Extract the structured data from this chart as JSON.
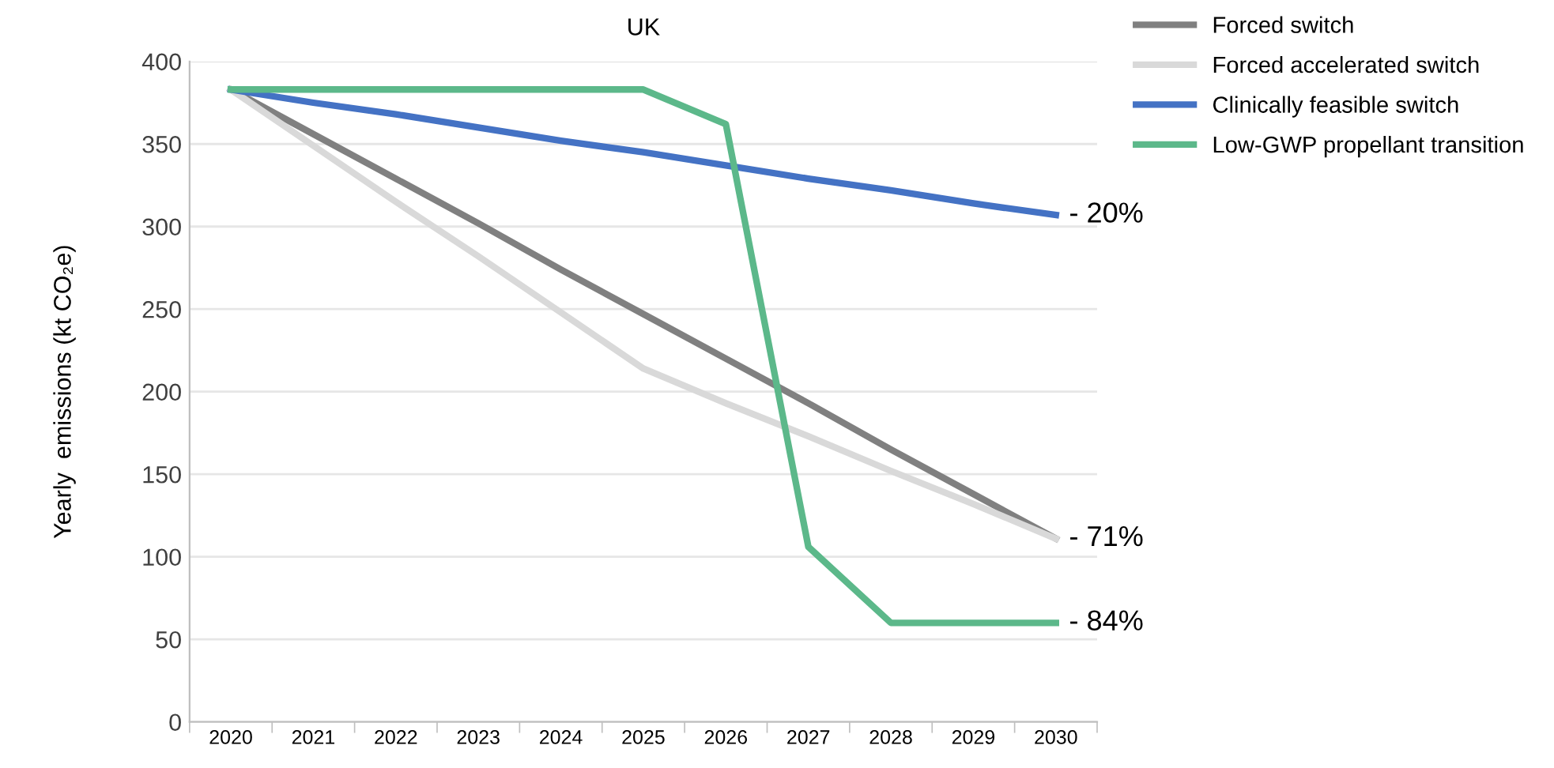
{
  "chart_data": {
    "type": "line",
    "title": "UK",
    "ylabel": "Yearly  emissions (kt CO₂e)",
    "categories": [
      "2020",
      "2021",
      "2022",
      "2023",
      "2024",
      "2025",
      "2026",
      "2027",
      "2028",
      "2029",
      "2030"
    ],
    "series": [
      {
        "name": "Forced switch",
        "color": "#808080",
        "values": [
          383,
          356,
          329,
          302,
          274,
          247,
          220,
          193,
          165,
          138,
          111
        ]
      },
      {
        "name": "Forced accelerated switch",
        "color": "#d9d9d9",
        "values": [
          383,
          349,
          315,
          282,
          248,
          214,
          193,
          173,
          152,
          132,
          111
        ]
      },
      {
        "name": "Clinically feasible switch",
        "color": "#4472c4",
        "values": [
          383,
          375,
          368,
          360,
          352,
          345,
          337,
          329,
          322,
          314,
          307
        ]
      },
      {
        "name": "Low-GWP propellant transition",
        "color": "#5cb88a",
        "values": [
          383,
          383,
          383,
          383,
          383,
          383,
          362,
          106,
          60,
          60,
          60
        ]
      }
    ],
    "annotations": [
      {
        "text": "- 20%",
        "x": "2030",
        "y": 307
      },
      {
        "text": "- 71%",
        "x": "2030",
        "y": 111
      },
      {
        "text": "- 84%",
        "x": "2030",
        "y": 60
      }
    ],
    "ylim": [
      0,
      400
    ],
    "yticks": [
      0,
      50,
      100,
      150,
      200,
      250,
      300,
      350,
      400
    ],
    "grid": "y",
    "legend": "top right",
    "marker": "none",
    "line_style": "solid"
  }
}
